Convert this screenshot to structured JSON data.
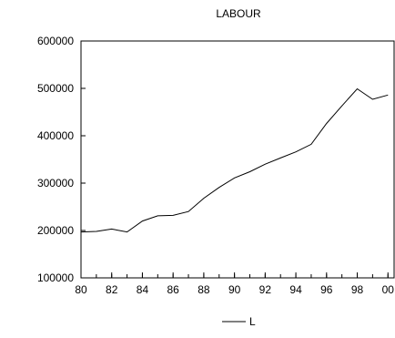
{
  "chart_data": {
    "type": "line",
    "title": "LABOUR",
    "xlabel": "",
    "ylabel": "",
    "x": [
      1980,
      1981,
      1982,
      1983,
      1984,
      1985,
      1986,
      1987,
      1988,
      1989,
      1990,
      1991,
      1992,
      1993,
      1994,
      1995,
      1996,
      1997,
      1998,
      1999,
      2000
    ],
    "series": [
      {
        "name": "L",
        "color": "#000000",
        "values": [
          197000,
          198000,
          203000,
          197000,
          220000,
          231000,
          232000,
          240000,
          268000,
          291000,
          311000,
          324000,
          340000,
          353000,
          366000,
          382000,
          426000,
          463000,
          499000,
          477000,
          486000
        ]
      }
    ],
    "xlim": [
      1980,
      2000.4
    ],
    "ylim": [
      100000,
      600000
    ],
    "xticks": [
      1980,
      1982,
      1984,
      1986,
      1988,
      1990,
      1992,
      1994,
      1996,
      1998,
      2000
    ],
    "xtick_labels": [
      "80",
      "82",
      "84",
      "86",
      "88",
      "90",
      "92",
      "94",
      "96",
      "98",
      "00"
    ],
    "yticks": [
      100000,
      200000,
      300000,
      400000,
      500000,
      600000
    ],
    "ytick_labels": [
      "100000",
      "200000",
      "300000",
      "400000",
      "500000",
      "600000"
    ],
    "grid": false,
    "legend_position": "bottom-center"
  }
}
